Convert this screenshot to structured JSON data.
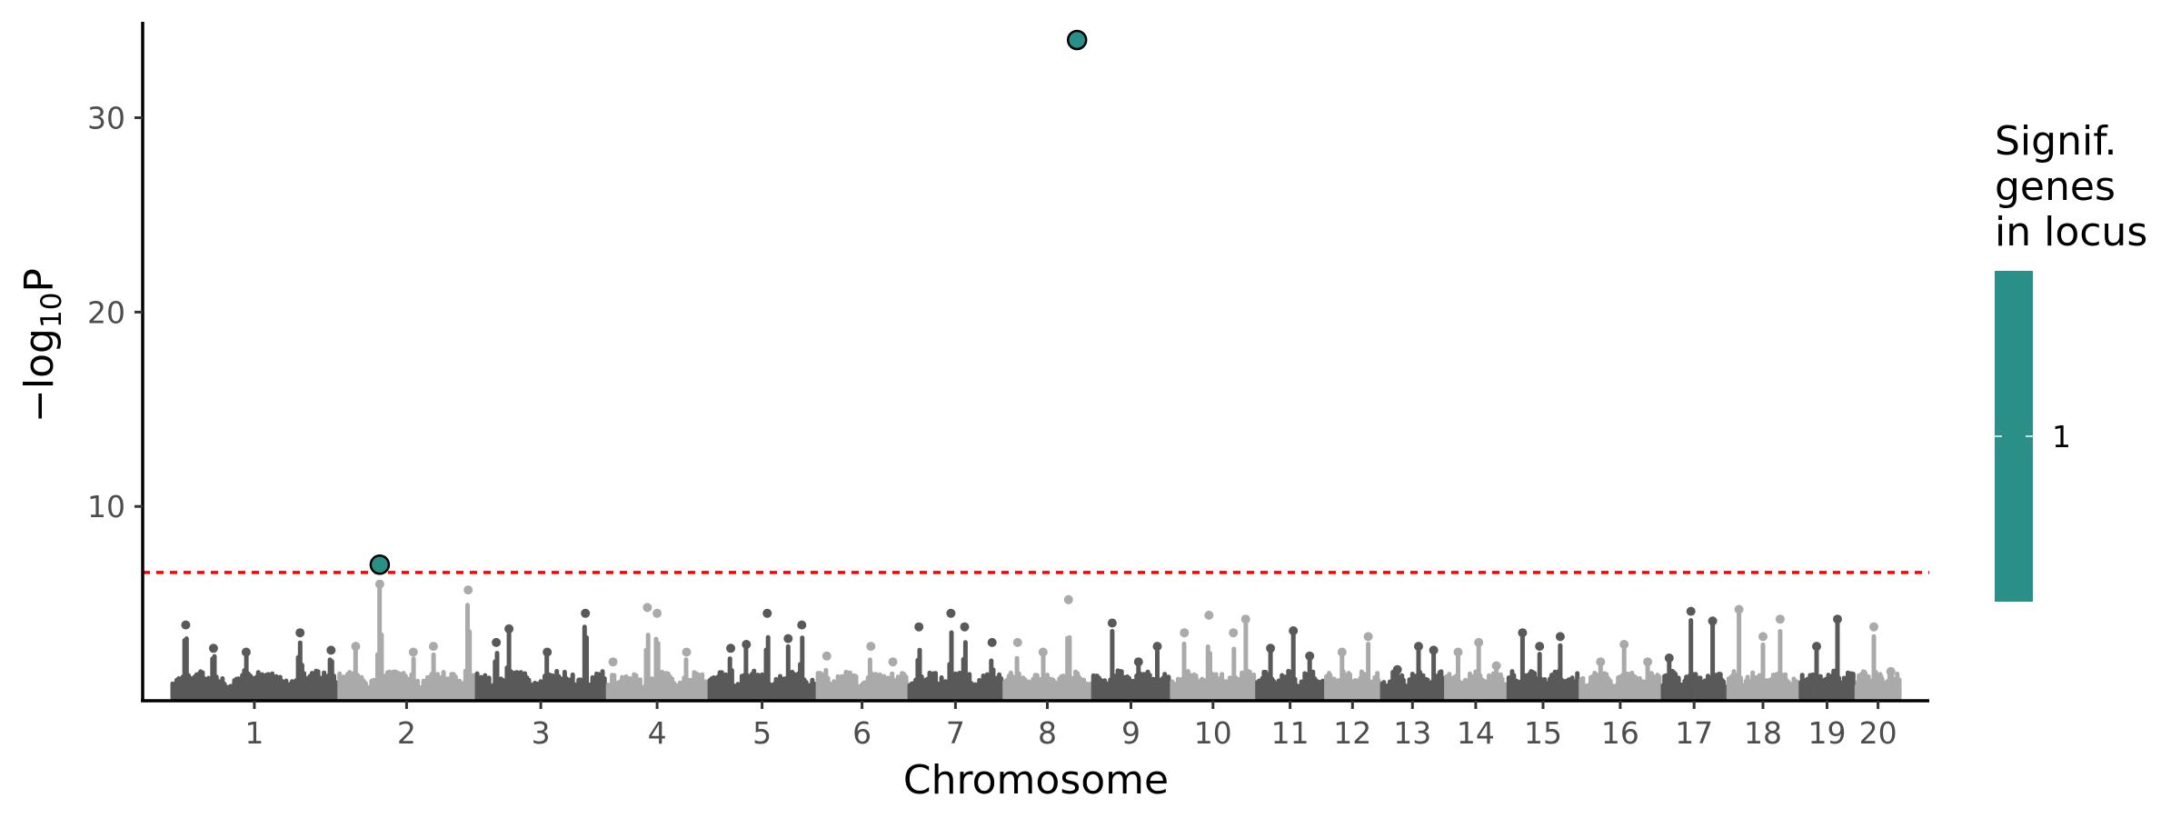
{
  "chart_data": {
    "type": "scatter",
    "subtype": "manhattan",
    "title": "",
    "xlabel": "Chromosome",
    "ylabel": "−log10P",
    "ylabel_parts": {
      "prefix": "−log",
      "subscript": "10",
      "suffix": "P"
    },
    "ylim": [
      0,
      35
    ],
    "yticks": [
      10,
      20,
      30
    ],
    "grid": false,
    "significance_threshold": 6.6,
    "threshold_color": "#ff0000",
    "point_colors": [
      "#595959",
      "#aaaaaa"
    ],
    "highlight_color": "#2a9087",
    "chromosomes": [
      {
        "label": "1",
        "background_peaks": [
          {
            "pos": 0.08,
            "value": 3.9
          },
          {
            "pos": 0.25,
            "value": 2.7
          },
          {
            "pos": 0.45,
            "value": 2.5
          },
          {
            "pos": 0.78,
            "value": 3.5
          },
          {
            "pos": 0.97,
            "value": 2.6
          }
        ]
      },
      {
        "label": "2",
        "background_peaks": [
          {
            "pos": 0.12,
            "value": 2.8
          },
          {
            "pos": 0.3,
            "value": 6.0
          },
          {
            "pos": 0.55,
            "value": 2.5
          },
          {
            "pos": 0.7,
            "value": 2.8
          },
          {
            "pos": 0.96,
            "value": 5.7
          }
        ]
      },
      {
        "label": "3",
        "background_peaks": [
          {
            "pos": 0.15,
            "value": 3.0
          },
          {
            "pos": 0.25,
            "value": 3.7
          },
          {
            "pos": 0.55,
            "value": 2.5
          },
          {
            "pos": 0.85,
            "value": 4.5
          }
        ]
      },
      {
        "label": "4",
        "background_peaks": [
          {
            "pos": 0.05,
            "value": 2.0
          },
          {
            "pos": 0.4,
            "value": 4.8
          },
          {
            "pos": 0.5,
            "value": 4.5
          },
          {
            "pos": 0.8,
            "value": 2.5
          }
        ]
      },
      {
        "label": "5",
        "background_peaks": [
          {
            "pos": 0.2,
            "value": 2.7
          },
          {
            "pos": 0.35,
            "value": 2.9
          },
          {
            "pos": 0.55,
            "value": 4.5
          },
          {
            "pos": 0.75,
            "value": 3.2
          },
          {
            "pos": 0.88,
            "value": 3.9
          }
        ]
      },
      {
        "label": "6",
        "background_peaks": [
          {
            "pos": 0.1,
            "value": 2.3
          },
          {
            "pos": 0.6,
            "value": 2.8
          },
          {
            "pos": 0.85,
            "value": 2.0
          }
        ]
      },
      {
        "label": "7",
        "background_peaks": [
          {
            "pos": 0.1,
            "value": 3.8
          },
          {
            "pos": 0.45,
            "value": 4.5
          },
          {
            "pos": 0.6,
            "value": 3.8
          },
          {
            "pos": 0.9,
            "value": 3.0
          }
        ]
      },
      {
        "label": "8",
        "background_peaks": [
          {
            "pos": 0.15,
            "value": 3.0
          },
          {
            "pos": 0.45,
            "value": 2.5
          },
          {
            "pos": 0.75,
            "value": 5.2
          }
        ]
      },
      {
        "label": "9",
        "background_peaks": [
          {
            "pos": 0.25,
            "value": 4.0
          },
          {
            "pos": 0.6,
            "value": 2.0
          },
          {
            "pos": 0.85,
            "value": 2.8
          }
        ]
      },
      {
        "label": "10",
        "background_peaks": [
          {
            "pos": 0.15,
            "value": 3.5
          },
          {
            "pos": 0.45,
            "value": 4.4
          },
          {
            "pos": 0.75,
            "value": 3.5
          },
          {
            "pos": 0.9,
            "value": 4.2
          }
        ]
      },
      {
        "label": "11",
        "background_peaks": [
          {
            "pos": 0.2,
            "value": 2.7
          },
          {
            "pos": 0.55,
            "value": 3.6
          },
          {
            "pos": 0.8,
            "value": 2.3
          }
        ]
      },
      {
        "label": "12",
        "background_peaks": [
          {
            "pos": 0.3,
            "value": 2.5
          },
          {
            "pos": 0.8,
            "value": 3.3
          }
        ]
      },
      {
        "label": "13",
        "background_peaks": [
          {
            "pos": 0.25,
            "value": 1.6
          },
          {
            "pos": 0.6,
            "value": 2.8
          },
          {
            "pos": 0.85,
            "value": 2.6
          }
        ]
      },
      {
        "label": "14",
        "background_peaks": [
          {
            "pos": 0.2,
            "value": 2.5
          },
          {
            "pos": 0.55,
            "value": 3.0
          },
          {
            "pos": 0.85,
            "value": 1.8
          }
        ]
      },
      {
        "label": "15",
        "background_peaks": [
          {
            "pos": 0.2,
            "value": 3.5
          },
          {
            "pos": 0.45,
            "value": 2.8
          },
          {
            "pos": 0.75,
            "value": 3.3
          }
        ]
      },
      {
        "label": "16",
        "background_peaks": [
          {
            "pos": 0.25,
            "value": 2.0
          },
          {
            "pos": 0.55,
            "value": 2.9
          },
          {
            "pos": 0.85,
            "value": 2.0
          }
        ]
      },
      {
        "label": "17",
        "background_peaks": [
          {
            "pos": 0.1,
            "value": 2.2
          },
          {
            "pos": 0.45,
            "value": 4.6
          },
          {
            "pos": 0.8,
            "value": 4.1
          }
        ]
      },
      {
        "label": "18",
        "background_peaks": [
          {
            "pos": 0.15,
            "value": 4.7
          },
          {
            "pos": 0.5,
            "value": 3.3
          },
          {
            "pos": 0.75,
            "value": 4.2
          }
        ]
      },
      {
        "label": "19",
        "background_peaks": [
          {
            "pos": 0.3,
            "value": 2.8
          },
          {
            "pos": 0.7,
            "value": 4.2
          }
        ]
      },
      {
        "label": "20",
        "background_peaks": [
          {
            "pos": 0.4,
            "value": 3.8
          },
          {
            "pos": 0.8,
            "value": 1.5
          }
        ]
      }
    ],
    "significant_points": [
      {
        "chromosome": "2",
        "pos": 0.3,
        "value": 7.0,
        "genes_in_locus": 1
      },
      {
        "chromosome": "8",
        "pos": 0.85,
        "value": 34.0,
        "genes_in_locus": 1
      }
    ],
    "legend": {
      "title_lines": [
        "Signif.",
        "genes",
        "in locus"
      ],
      "labels": [
        "1"
      ],
      "color": "#2a9087",
      "position": "right"
    }
  }
}
